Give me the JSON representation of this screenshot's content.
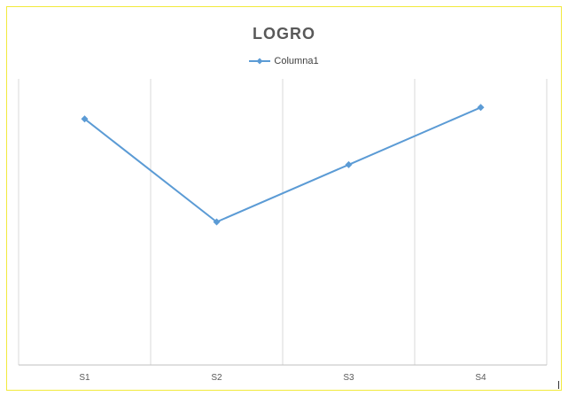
{
  "chart_data": {
    "type": "line",
    "title": "LOGRO",
    "categories": [
      "S1",
      "S2",
      "S3",
      "S4"
    ],
    "series": [
      {
        "name": "Columna1",
        "values": [
          86,
          50,
          70,
          90
        ],
        "color": "#5b9bd5",
        "marker": "diamond"
      }
    ],
    "ylim": [
      0,
      100
    ],
    "xlabel": "",
    "ylabel": "",
    "grid": "vertical",
    "legend": "top-center",
    "colors": {
      "border": "#f2ea3c",
      "title": "#595959",
      "grid": "#d9d9d9",
      "axis": "#bfbfbf"
    }
  }
}
